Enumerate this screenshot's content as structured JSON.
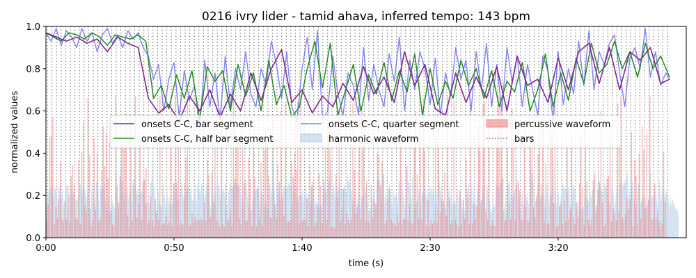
{
  "chart_data": {
    "type": "line",
    "title": "0216 ivry lider - tamid ahava, inferred tempo: 143 bpm",
    "xlabel": "time (s)",
    "ylabel": "normalized values",
    "xlim": [
      0,
      250
    ],
    "ylim": [
      0,
      1.0
    ],
    "x_ticks": [
      {
        "value": 0,
        "label": "0:00"
      },
      {
        "value": 50,
        "label": "0:50"
      },
      {
        "value": 100,
        "label": "1:40"
      },
      {
        "value": 150,
        "label": "2:30"
      },
      {
        "value": 200,
        "label": "3:20"
      }
    ],
    "y_ticks": [
      {
        "value": 0.0,
        "label": "0.0"
      },
      {
        "value": 0.2,
        "label": "0.2"
      },
      {
        "value": 0.4,
        "label": "0.4"
      },
      {
        "value": 0.6,
        "label": "0.6"
      },
      {
        "value": 0.8,
        "label": "0.8"
      },
      {
        "value": 1.0,
        "label": "1.0"
      }
    ],
    "grid": false,
    "legend_position": "center",
    "legend": [
      {
        "key": "bar",
        "label": "onsets C-C, bar segment"
      },
      {
        "key": "half",
        "label": "onsets C-C, half bar segment"
      },
      {
        "key": "quarter",
        "label": "onsets C-C, quarter segment"
      },
      {
        "key": "harmonic",
        "label": "harmonic waveform"
      },
      {
        "key": "percussive",
        "label": "percussive waveform"
      },
      {
        "key": "bars",
        "label": "bars"
      }
    ],
    "series": [
      {
        "key": "quarter",
        "color": "#5a5af0",
        "x": [
          0,
          2,
          4,
          6,
          8,
          10,
          12,
          14,
          16,
          18,
          20,
          22,
          24,
          26,
          28,
          30,
          32,
          34,
          36,
          38,
          40,
          42,
          44,
          46,
          48,
          50,
          52,
          54,
          56,
          58,
          60,
          62,
          64,
          66,
          68,
          70,
          72,
          74,
          76,
          78,
          80,
          82,
          84,
          86,
          88,
          90,
          92,
          94,
          96,
          98,
          100,
          102,
          104,
          106,
          108,
          110,
          112,
          114,
          116,
          118,
          120,
          122,
          124,
          126,
          128,
          130,
          132,
          134,
          136,
          138,
          140,
          142,
          144,
          146,
          148,
          150,
          152,
          154,
          156,
          158,
          160,
          162,
          164,
          166,
          168,
          170,
          172,
          174,
          176,
          178,
          180,
          182,
          184,
          186,
          188,
          190,
          192,
          194,
          196,
          198,
          200,
          202,
          204,
          206,
          208,
          210,
          212,
          214,
          216,
          218,
          220,
          222,
          224,
          226,
          228,
          230,
          232,
          234,
          236,
          238,
          240,
          242,
          243.5
        ],
        "values": [
          0.97,
          0.93,
          0.99,
          0.91,
          0.98,
          0.95,
          0.9,
          0.99,
          0.93,
          0.97,
          0.88,
          0.96,
          0.99,
          0.92,
          0.96,
          0.9,
          0.98,
          0.94,
          0.97,
          0.9,
          0.86,
          0.75,
          0.82,
          0.6,
          0.75,
          0.83,
          0.57,
          0.79,
          0.65,
          0.72,
          0.52,
          0.84,
          0.62,
          0.78,
          0.56,
          0.86,
          0.62,
          0.8,
          0.7,
          0.88,
          0.68,
          0.62,
          0.8,
          0.72,
          0.93,
          0.82,
          0.66,
          0.88,
          0.62,
          0.55,
          0.8,
          0.95,
          0.7,
          0.98,
          0.56,
          0.6,
          0.86,
          0.68,
          0.58,
          0.78,
          0.72,
          0.58,
          0.9,
          0.65,
          0.82,
          0.7,
          0.62,
          0.87,
          0.74,
          0.95,
          0.6,
          0.84,
          0.7,
          0.88,
          0.8,
          0.63,
          0.85,
          0.58,
          0.78,
          0.67,
          0.9,
          0.75,
          0.84,
          0.6,
          0.88,
          0.7,
          0.92,
          0.62,
          0.82,
          0.6,
          0.9,
          0.74,
          0.86,
          0.62,
          0.82,
          0.7,
          0.58,
          0.86,
          0.79,
          0.55,
          0.88,
          0.63,
          0.8,
          0.68,
          0.93,
          0.72,
          0.98,
          0.7,
          0.88,
          0.82,
          0.92,
          0.96,
          0.78,
          0.62,
          0.85,
          0.9,
          0.8,
          0.99,
          0.76,
          0.88,
          0.72,
          0.78,
          0.75
        ]
      },
      {
        "key": "half",
        "color": "#228b22",
        "x": [
          0,
          3,
          6,
          9,
          12,
          15,
          18,
          21,
          24,
          27,
          30,
          33,
          36,
          39,
          42,
          45,
          48,
          51,
          54,
          57,
          60,
          63,
          66,
          69,
          72,
          75,
          78,
          81,
          84,
          87,
          90,
          93,
          96,
          99,
          102,
          105,
          108,
          111,
          114,
          117,
          120,
          123,
          126,
          129,
          132,
          135,
          138,
          141,
          144,
          147,
          150,
          153,
          156,
          159,
          162,
          165,
          168,
          171,
          174,
          177,
          180,
          183,
          186,
          189,
          192,
          195,
          198,
          201,
          204,
          207,
          210,
          213,
          216,
          219,
          222,
          225,
          228,
          231,
          234,
          237,
          240,
          243.5
        ],
        "values": [
          0.97,
          0.95,
          0.93,
          0.97,
          0.96,
          0.94,
          0.97,
          0.95,
          0.91,
          0.96,
          0.95,
          0.94,
          0.96,
          0.93,
          0.66,
          0.72,
          0.61,
          0.77,
          0.66,
          0.79,
          0.56,
          0.81,
          0.74,
          0.79,
          0.6,
          0.82,
          0.67,
          0.78,
          0.6,
          0.84,
          0.63,
          0.72,
          0.57,
          0.62,
          0.8,
          0.93,
          0.71,
          0.92,
          0.58,
          0.7,
          0.82,
          0.6,
          0.77,
          0.68,
          0.83,
          0.65,
          0.79,
          0.69,
          0.87,
          0.58,
          0.8,
          0.63,
          0.74,
          0.66,
          0.84,
          0.72,
          0.8,
          0.66,
          0.79,
          0.62,
          0.74,
          0.69,
          0.83,
          0.6,
          0.7,
          0.87,
          0.62,
          0.78,
          0.65,
          0.85,
          0.73,
          0.92,
          0.78,
          0.82,
          0.93,
          0.8,
          0.88,
          0.76,
          0.92,
          0.8,
          0.86,
          0.76
        ]
      },
      {
        "key": "bar",
        "color": "#7d2a8e",
        "x": [
          0,
          4,
          8,
          12,
          16,
          20,
          24,
          28,
          32,
          36,
          40,
          44,
          48,
          52,
          56,
          60,
          64,
          68,
          72,
          76,
          80,
          84,
          88,
          92,
          96,
          100,
          104,
          108,
          112,
          116,
          120,
          124,
          128,
          132,
          136,
          140,
          144,
          148,
          152,
          156,
          160,
          164,
          168,
          172,
          176,
          180,
          184,
          188,
          192,
          196,
          200,
          204,
          208,
          212,
          216,
          220,
          224,
          228,
          232,
          236,
          240,
          243.5
        ],
        "values": [
          0.97,
          0.95,
          0.93,
          0.95,
          0.92,
          0.94,
          0.88,
          0.95,
          0.92,
          0.9,
          0.66,
          0.59,
          0.63,
          0.55,
          0.67,
          0.6,
          0.7,
          0.57,
          0.68,
          0.6,
          0.78,
          0.65,
          0.8,
          0.89,
          0.64,
          0.7,
          0.59,
          0.67,
          0.62,
          0.73,
          0.65,
          0.81,
          0.68,
          0.76,
          0.64,
          0.88,
          0.72,
          0.82,
          0.61,
          0.58,
          0.78,
          0.64,
          0.76,
          0.66,
          0.81,
          0.6,
          0.86,
          0.72,
          0.75,
          0.64,
          0.85,
          0.7,
          0.88,
          0.92,
          0.73,
          0.9,
          0.7,
          0.88,
          0.84,
          0.9,
          0.73,
          0.75
        ]
      }
    ]
  }
}
